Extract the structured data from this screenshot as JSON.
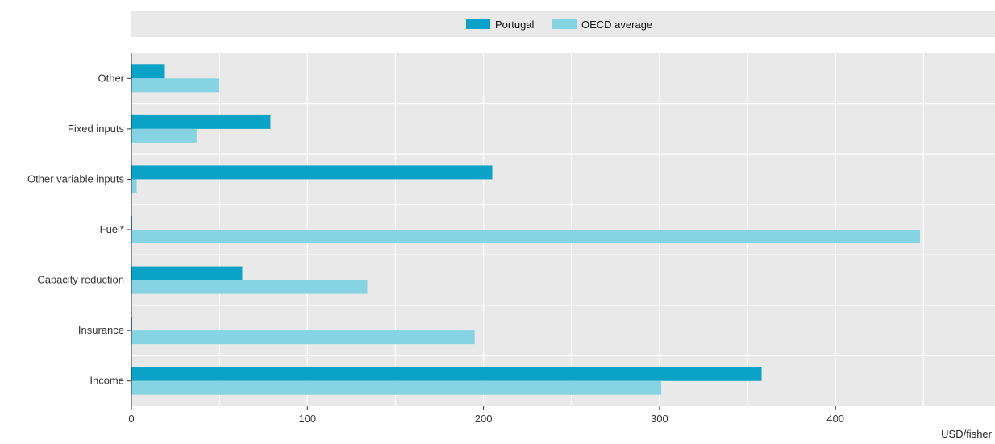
{
  "chart_data": {
    "type": "bar",
    "orientation": "horizontal",
    "categories": [
      "Other",
      "Fixed inputs",
      "Other variable inputs",
      "Fuel*",
      "Capacity reduction",
      "Insurance",
      "Income"
    ],
    "series": [
      {
        "name": "Portugal",
        "color": "#0aa3c7",
        "values": [
          19,
          79,
          205,
          0,
          63,
          0,
          358
        ]
      },
      {
        "name": "OECD average",
        "color": "#86d3e3",
        "values": [
          50,
          37,
          3,
          448,
          134,
          195,
          301
        ]
      }
    ],
    "xlabel": "USD/fisher",
    "xlim": [
      0,
      490
    ],
    "xticks": [
      0,
      100,
      200,
      300,
      400
    ],
    "grid": true,
    "legend_position": "top"
  }
}
